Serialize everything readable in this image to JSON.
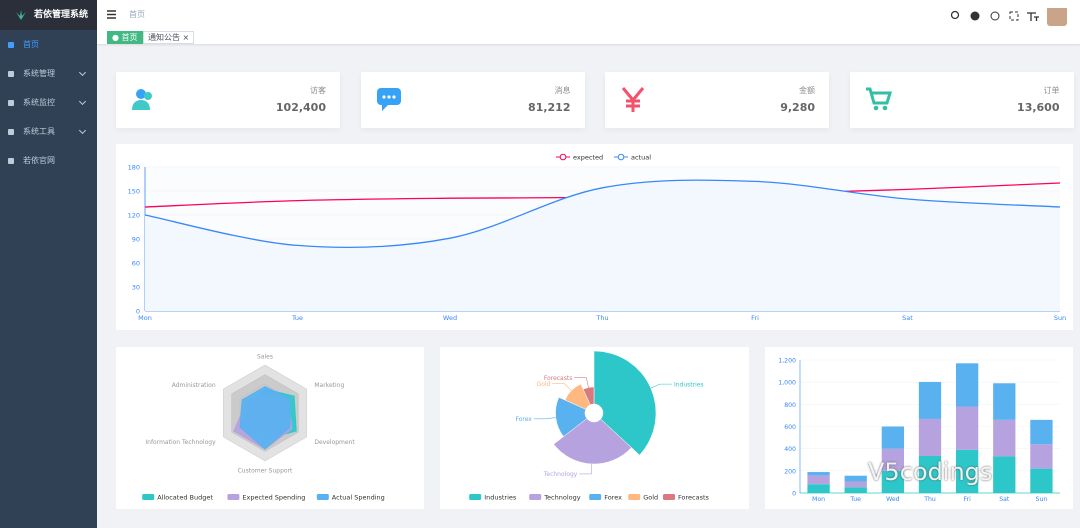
{
  "sidebar": {
    "title": "若依管理系统",
    "menu": [
      "首页",
      "系统管理",
      "系统监控",
      "系统工具",
      "若依官网"
    ]
  },
  "header": {
    "breadcrumb": "首页"
  },
  "tags": [
    "首页",
    "通知公告"
  ],
  "cards": [
    {
      "label": "访客",
      "value": "102,400"
    },
    {
      "label": "消息",
      "value": "81,212"
    },
    {
      "label": "金额",
      "value": "9,280"
    },
    {
      "label": "订单",
      "value": "13,600"
    }
  ],
  "watermark": "V5codings",
  "chart_data": [
    {
      "type": "line",
      "categories": [
        "Mon",
        "Tue",
        "Wed",
        "Thu",
        "Fri",
        "Sat",
        "Sun"
      ],
      "series": [
        {
          "name": "expected",
          "color": "#ff005a",
          "values": [
            130,
            138,
            141,
            142,
            146,
            152,
            160
          ]
        },
        {
          "name": "actual",
          "color": "#3888fa",
          "values": [
            120,
            82,
            91,
            154,
            162,
            140,
            130
          ]
        }
      ],
      "ylim": [
        0,
        180
      ],
      "yticks": [
        0,
        30,
        60,
        90,
        120,
        150,
        180
      ],
      "legend": "top"
    },
    {
      "type": "radar",
      "indicators": [
        {
          "name": "Sales",
          "max": 10000
        },
        {
          "name": "Administration",
          "max": 20000
        },
        {
          "name": "Information Technology",
          "max": 20000
        },
        {
          "name": "Customer Support",
          "max": 20000
        },
        {
          "name": "Development",
          "max": 20000
        },
        {
          "name": "Marketing",
          "max": 20000
        }
      ],
      "series": [
        {
          "name": "Allocated Budget",
          "color": "#2ec7c9",
          "values": [
            5000,
            7000,
            12000,
            11000,
            15000,
            14000
          ]
        },
        {
          "name": "Expected Spending",
          "color": "#b6a2de",
          "values": [
            4000,
            9000,
            15000,
            15000,
            13000,
            11000
          ]
        },
        {
          "name": "Actual Spending",
          "color": "#5ab1ef",
          "values": [
            5500,
            11000,
            12000,
            15000,
            12000,
            12000
          ]
        }
      ],
      "legend": "bottom"
    },
    {
      "type": "pie",
      "rose": true,
      "categories": [
        "Industries",
        "Technology",
        "Forex",
        "Gold",
        "Forecasts"
      ],
      "values": [
        320,
        240,
        149,
        100,
        59
      ],
      "colors": [
        "#2ec7c9",
        "#b6a2de",
        "#5ab1ef",
        "#ffb980",
        "#d87a80"
      ],
      "legend": "bottom"
    },
    {
      "type": "bar",
      "stacked": true,
      "categories": [
        "Mon",
        "Tue",
        "Wed",
        "Thu",
        "Fri",
        "Sat",
        "Sun"
      ],
      "series": [
        {
          "color": "#2ec7c9",
          "values": [
            79,
            52,
            200,
            334,
            390,
            330,
            220
          ]
        },
        {
          "color": "#b6a2de",
          "values": [
            80,
            52,
            200,
            334,
            390,
            330,
            220
          ]
        },
        {
          "color": "#5ab1ef",
          "values": [
            30,
            52,
            200,
            334,
            390,
            330,
            220
          ]
        }
      ],
      "ylim": [
        0,
        1200
      ],
      "yticks": [
        0,
        200,
        400,
        600,
        800,
        {
          "value": 1000,
          "label": "1,000"
        },
        {
          "value": 1200,
          "label": "1,200"
        }
      ],
      "grid": true
    }
  ]
}
